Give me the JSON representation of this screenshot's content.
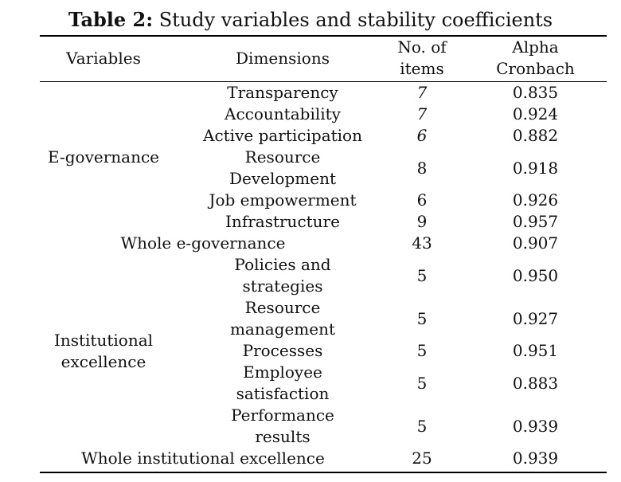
{
  "table": {
    "title_bold": "Table 2:",
    "title_rest": " Study variables and stability coefficients",
    "headers": {
      "variables": "Variables",
      "dimensions": "Dimensions",
      "items_l1": "No. of",
      "items_l2": "items",
      "alpha_l1": "Alpha",
      "alpha_l2": "Cronbach"
    },
    "groups": [
      {
        "variable_lines": [
          "E-governance"
        ],
        "rows": [
          {
            "dimension_lines": [
              "Transparency"
            ],
            "items": "7",
            "alpha": "0.835"
          },
          {
            "dimension_lines": [
              "Accountability"
            ],
            "items": "7",
            "alpha": "0.924"
          },
          {
            "dimension_lines": [
              "Active participation"
            ],
            "items": "6",
            "alpha": "0.882"
          },
          {
            "dimension_lines": [
              "Resource",
              "Development"
            ],
            "items": "8",
            "alpha": "0.918"
          },
          {
            "dimension_lines": [
              "Job empowerment"
            ],
            "items": "6",
            "alpha": "0.926"
          },
          {
            "dimension_lines": [
              "Infrastructure"
            ],
            "items": "9",
            "alpha": "0.957"
          }
        ],
        "total": {
          "label": "Whole e-governance",
          "items": "43",
          "alpha": "0.907"
        }
      },
      {
        "variable_lines": [
          "Institutional",
          "excellence"
        ],
        "rows": [
          {
            "dimension_lines": [
              "Policies and",
              "strategies"
            ],
            "items": "5",
            "alpha": "0.950"
          },
          {
            "dimension_lines": [
              "Resource",
              "management"
            ],
            "items": "5",
            "alpha": "0.927"
          },
          {
            "dimension_lines": [
              "Processes"
            ],
            "items": "5",
            "alpha": "0.951"
          },
          {
            "dimension_lines": [
              "Employee",
              "satisfaction"
            ],
            "items": "5",
            "alpha": "0.883"
          },
          {
            "dimension_lines": [
              "Performance",
              "results"
            ],
            "items": "5",
            "alpha": "0.939"
          }
        ],
        "total": {
          "label": "Whole institutional excellence",
          "items": "25",
          "alpha": "0.939"
        }
      }
    ]
  }
}
